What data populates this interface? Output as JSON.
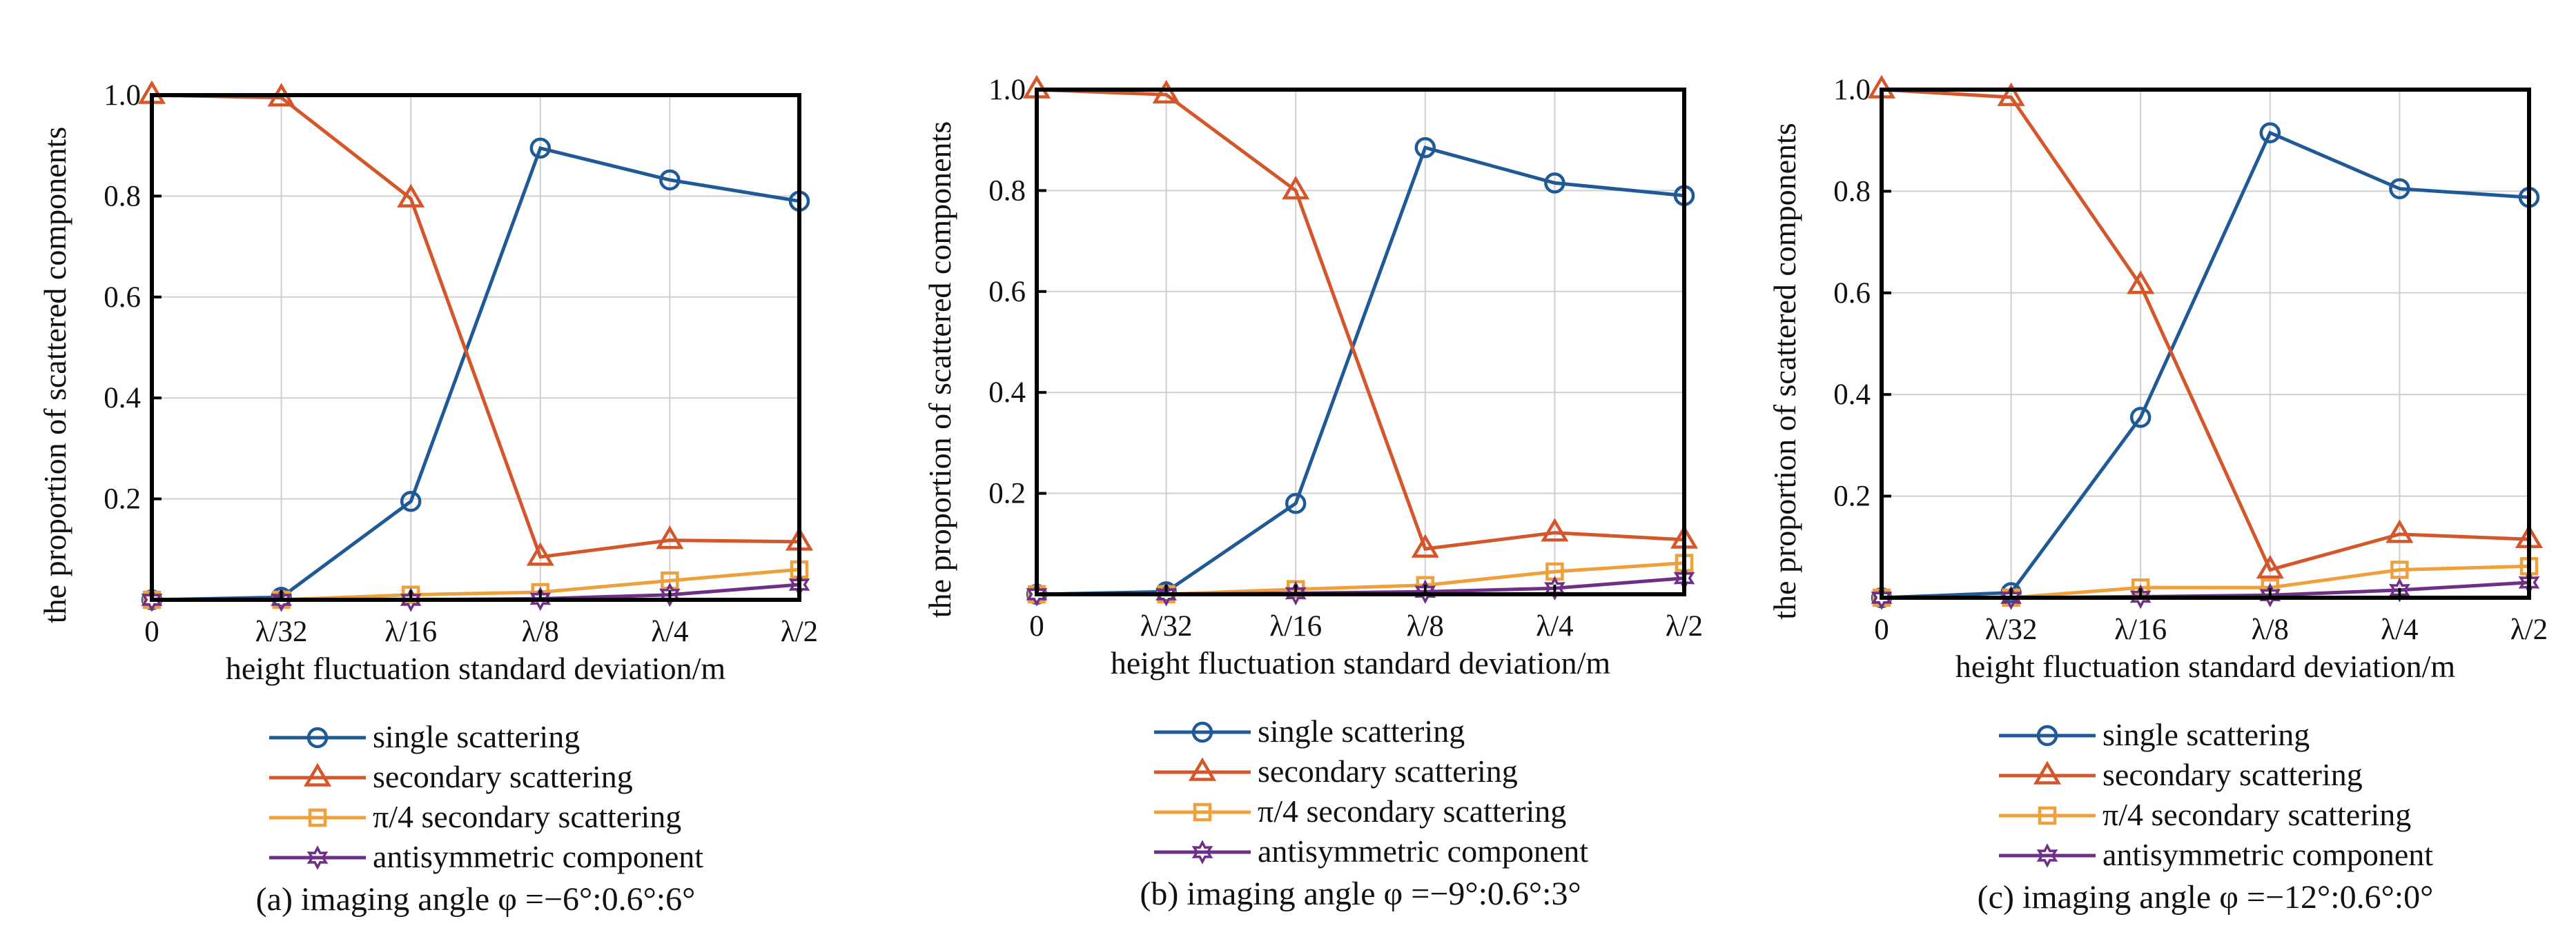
{
  "legend": {
    "position": "below-plot",
    "entries": [
      {
        "label": "single scattering",
        "color": "#1f5a96",
        "marker": "circle-marker-icon"
      },
      {
        "label": "secondary scattering",
        "color": "#d4562b",
        "marker": "triangle-marker-icon"
      },
      {
        "label": "π/4 secondary scattering",
        "color": "#eea03a",
        "marker": "square-marker-icon"
      },
      {
        "label": "antisymmetric component",
        "color": "#6e2f86",
        "marker": "hexagram-marker-icon"
      }
    ]
  },
  "chart_data": [
    {
      "type": "line",
      "caption": "(a) imaging angle φ =−6°:0.6°:6°",
      "xlabel": "height fluctuation standard deviation/m",
      "ylabel": "the proportion of scattered components",
      "categories": [
        "0",
        "λ/32",
        "λ/16",
        "λ/8",
        "λ/4",
        "λ/2"
      ],
      "yticks": [
        "0.2",
        "0.4",
        "0.6",
        "0.8",
        "1.0"
      ],
      "ylim": [
        0,
        1.0
      ],
      "grid": true,
      "series": [
        {
          "name": "single scattering",
          "values": [
            0.0,
            0.005,
            0.195,
            0.895,
            0.832,
            0.79
          ]
        },
        {
          "name": "secondary scattering",
          "values": [
            1.0,
            0.995,
            0.795,
            0.085,
            0.118,
            0.115
          ]
        },
        {
          "name": "π/4 secondary scattering",
          "values": [
            0.0,
            0.0,
            0.01,
            0.015,
            0.038,
            0.06
          ]
        },
        {
          "name": "antisymmetric component",
          "values": [
            0.0,
            0.0,
            0.0,
            0.002,
            0.01,
            0.03
          ]
        }
      ]
    },
    {
      "type": "line",
      "caption": "(b) imaging angle φ =−9°:0.6°:3°",
      "xlabel": "height fluctuation standard deviation/m",
      "ylabel": "the proportion of scattered components",
      "categories": [
        "0",
        "λ/32",
        "λ/16",
        "λ/8",
        "λ/4",
        "λ/2"
      ],
      "yticks": [
        "0.2",
        "0.4",
        "0.6",
        "0.8",
        "1.0"
      ],
      "ylim": [
        0,
        1.0
      ],
      "grid": true,
      "series": [
        {
          "name": "single scattering",
          "values": [
            0.0,
            0.005,
            0.18,
            0.885,
            0.815,
            0.79
          ]
        },
        {
          "name": "secondary scattering",
          "values": [
            1.0,
            0.99,
            0.8,
            0.09,
            0.122,
            0.108
          ]
        },
        {
          "name": "π/4 secondary scattering",
          "values": [
            0.0,
            0.0,
            0.01,
            0.018,
            0.045,
            0.062
          ]
        },
        {
          "name": "antisymmetric component",
          "values": [
            0.0,
            0.0,
            0.002,
            0.005,
            0.012,
            0.032
          ]
        }
      ]
    },
    {
      "type": "line",
      "caption": "(c) imaging angle φ =−12°:0.6°:0°",
      "xlabel": "height fluctuation standard deviation/m",
      "ylabel": "the proportion of scattered components",
      "categories": [
        "0",
        "λ/32",
        "λ/16",
        "λ/8",
        "λ/4",
        "λ/2"
      ],
      "yticks": [
        "0.2",
        "0.4",
        "0.6",
        "0.8",
        "1.0"
      ],
      "ylim": [
        0,
        1.0
      ],
      "grid": true,
      "series": [
        {
          "name": "single scattering",
          "values": [
            0.0,
            0.01,
            0.355,
            0.915,
            0.805,
            0.788
          ]
        },
        {
          "name": "secondary scattering",
          "values": [
            1.0,
            0.985,
            0.615,
            0.055,
            0.125,
            0.115
          ]
        },
        {
          "name": "π/4 secondary scattering",
          "values": [
            0.0,
            0.0,
            0.02,
            0.02,
            0.055,
            0.062
          ]
        },
        {
          "name": "antisymmetric component",
          "values": [
            0.0,
            0.0,
            0.002,
            0.005,
            0.015,
            0.03
          ]
        }
      ]
    }
  ]
}
